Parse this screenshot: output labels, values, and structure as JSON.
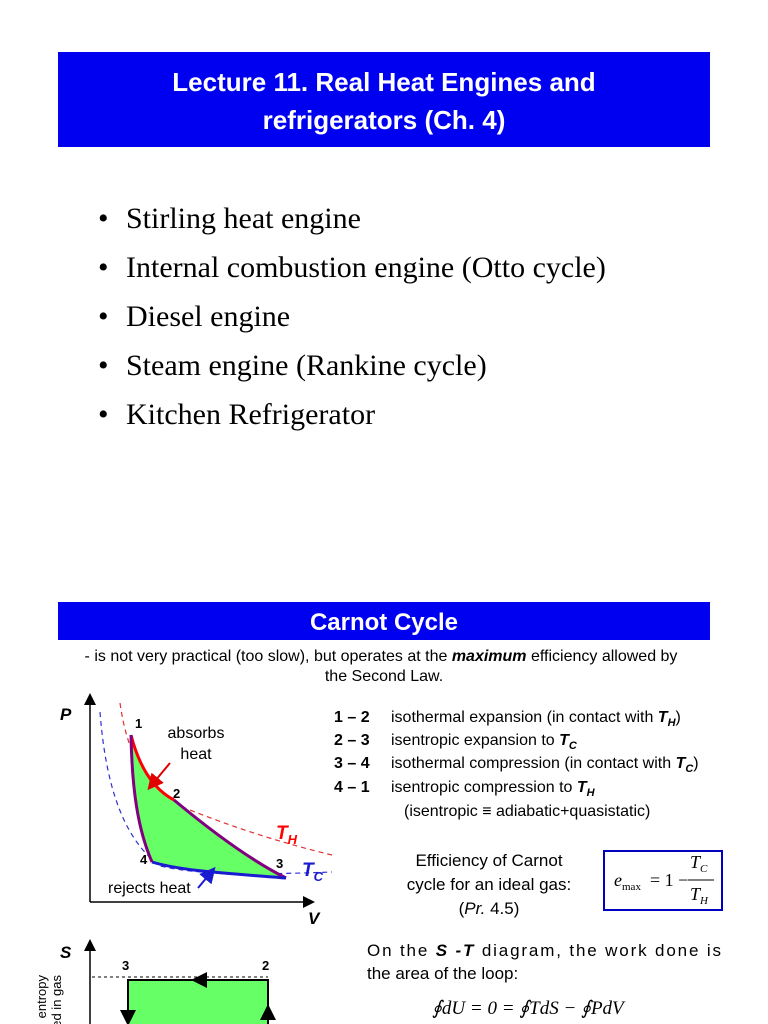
{
  "header": {
    "title": [
      "Lecture 11.  Real Heat Engines and",
      "refrigerators (Ch. 4)"
    ]
  },
  "bullets": [
    "Stirling heat engine",
    "Internal combustion engine (Otto cycle)",
    "Diesel engine",
    "Steam engine (Rankine cycle)",
    "Kitchen Refrigerator"
  ],
  "section": {
    "title": "Carnot Cycle",
    "subtitle": {
      "before": "- is not very practical (too slow), but operates at the ",
      "emphasis": "maximum",
      "after": " efficiency allowed by",
      "line2": "the Second Law."
    }
  },
  "pv_diagram": {
    "y_axis": "P",
    "x_axis": "V",
    "points": [
      "1",
      "2",
      "3",
      "4"
    ],
    "absorbs": [
      "absorbs",
      "heat"
    ],
    "rejects": "rejects heat",
    "hot": {
      "var": "T",
      "sub": "H"
    },
    "cold": {
      "var": "T",
      "sub": "C"
    }
  },
  "steps": [
    {
      "label": "1 – 2",
      "text": "isothermal expansion (in contact with ",
      "var": "T",
      "sub": "H",
      "end": ")"
    },
    {
      "label": "2 – 3",
      "text": "isentropic expansion to ",
      "var": "T",
      "sub": "C"
    },
    {
      "label": "3 – 4",
      "text": "isothermal compression (in contact with ",
      "var": "T",
      "sub": "C",
      "end": ")"
    },
    {
      "label": "4 – 1",
      "text": "isentropic compression to ",
      "var": "T",
      "sub": "H"
    }
  ],
  "steps_note": "(isentropic ≡ adiabatic+quasistatic)",
  "efficiency": {
    "lines": [
      "Efficiency of Carnot",
      "cycle for an ideal gas:"
    ],
    "ref": {
      "before": "(",
      "italic": "Pr.",
      "after": " 4.5)"
    }
  },
  "formula": {
    "lhs": "e",
    "lhs_sub": "max",
    "op": "= 1 −",
    "num": "T",
    "num_sub": "C",
    "den": "T",
    "den_sub": "H"
  },
  "st_diagram": {
    "y_axis": "S",
    "axis_label": [
      "entropy",
      "stored in gas"
    ],
    "points": [
      "3",
      "2"
    ]
  },
  "loop_note": {
    "before": "On the ",
    "emphasis": "S -T",
    "after": " diagram, the work done is",
    "line2": "the area of the loop:"
  },
  "equation": "∮dU = 0 = ∮TdS − ∮PdV"
}
